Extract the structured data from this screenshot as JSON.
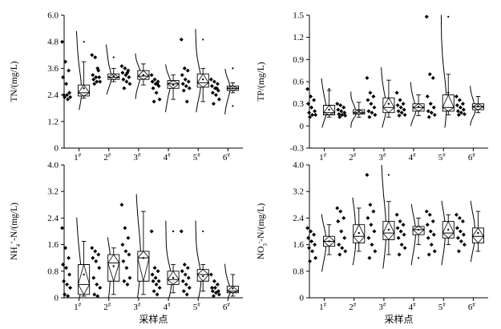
{
  "x_title": "采样点",
  "sites": [
    "1",
    "2",
    "3",
    "4",
    "5",
    "6"
  ],
  "site_mark": "#",
  "chart_data": [
    {
      "type": "violin-box-scatter",
      "ylabel": "TN/(mg/L)",
      "ylim": [
        0,
        6.0
      ],
      "yticks": [
        "0",
        "1.2",
        "2.4",
        "3.6",
        "4.8",
        "6.0"
      ],
      "series": [
        {
          "site": "1",
          "points": [
            4.8,
            3.9,
            3.5,
            3.2,
            2.9,
            2.5,
            2.4,
            2.4,
            2.3,
            2.3,
            2.2
          ],
          "box": [
            2.25,
            2.35,
            2.5,
            2.85,
            3.9
          ],
          "mean": 2.7,
          "outliers": [
            4.8
          ]
        },
        {
          "site": "2",
          "points": [
            4.2,
            4.1,
            3.5,
            3.3,
            3.2,
            3.2,
            3.1,
            3.0,
            3.0,
            2.9,
            3.6
          ],
          "box": [
            3.0,
            3.1,
            3.2,
            3.35,
            3.6
          ],
          "mean": 3.25,
          "outliers": [
            4.1
          ]
        },
        {
          "site": "3",
          "points": [
            3.7,
            3.6,
            3.5,
            3.4,
            3.3,
            3.2,
            3.1,
            3.0,
            2.9,
            2.7,
            3.4
          ],
          "box": [
            2.85,
            3.1,
            3.25,
            3.5,
            3.8
          ],
          "mean": 3.3,
          "outliers": []
        },
        {
          "site": "4",
          "points": [
            3.3,
            3.1,
            3.0,
            3.0,
            2.9,
            2.8,
            2.7,
            2.5,
            2.2,
            2.1,
            2.9
          ],
          "box": [
            2.2,
            2.7,
            2.9,
            3.05,
            3.3
          ],
          "mean": 2.85,
          "outliers": []
        },
        {
          "site": "5",
          "points": [
            4.9,
            3.6,
            3.5,
            3.3,
            3.1,
            3.0,
            2.9,
            2.8,
            2.7,
            2.6,
            2.1
          ],
          "box": [
            2.1,
            2.75,
            2.95,
            3.35,
            3.6
          ],
          "mean": 3.1,
          "outliers": [
            4.9
          ]
        },
        {
          "site": "6",
          "points": [
            3.1,
            3.0,
            2.9,
            2.8,
            2.7,
            2.6,
            2.5,
            2.4,
            2.2,
            2.0,
            2.7
          ],
          "box": [
            2.5,
            2.6,
            2.7,
            2.8,
            2.95
          ],
          "mean": 2.7,
          "outliers": [
            3.6,
            1.9
          ]
        }
      ]
    },
    {
      "type": "violin-box-scatter",
      "ylabel": "TP/(mg/L)",
      "ylim": [
        -0.3,
        1.5
      ],
      "yticks": [
        "-0.3",
        "0",
        "0.3",
        "0.6",
        "0.9",
        "1.2",
        "1.5"
      ],
      "series": [
        {
          "site": "1",
          "points": [
            0.5,
            0.4,
            0.35,
            0.3,
            0.25,
            0.2,
            0.18,
            0.15,
            0.15,
            0.12
          ],
          "box": [
            0.12,
            0.15,
            0.18,
            0.28,
            0.48
          ],
          "mean": 0.22,
          "outliers": [
            0.5
          ]
        },
        {
          "site": "2",
          "points": [
            0.3,
            0.28,
            0.25,
            0.22,
            0.2,
            0.18,
            0.16,
            0.15,
            0.14,
            0.12
          ],
          "box": [
            0.12,
            0.16,
            0.18,
            0.22,
            0.32
          ],
          "mean": 0.2,
          "outliers": []
        },
        {
          "site": "3",
          "points": [
            0.65,
            0.45,
            0.4,
            0.35,
            0.3,
            0.25,
            0.2,
            0.18,
            0.15,
            0.12
          ],
          "box": [
            0.12,
            0.18,
            0.25,
            0.38,
            0.62
          ],
          "mean": 0.3,
          "outliers": []
        },
        {
          "site": "4",
          "points": [
            0.45,
            0.35,
            0.3,
            0.28,
            0.25,
            0.22,
            0.2,
            0.18,
            0.15,
            0.14
          ],
          "box": [
            0.14,
            0.2,
            0.25,
            0.3,
            0.42
          ],
          "mean": 0.26,
          "outliers": []
        },
        {
          "site": "5",
          "points": [
            1.48,
            0.7,
            0.65,
            0.4,
            0.3,
            0.25,
            0.2,
            0.18,
            0.15,
            0.12
          ],
          "box": [
            0.15,
            0.2,
            0.25,
            0.42,
            0.7
          ],
          "mean": 0.45,
          "outliers": [
            1.48
          ]
        },
        {
          "site": "6",
          "points": [
            0.4,
            0.35,
            0.3,
            0.28,
            0.25,
            0.22,
            0.2,
            0.18,
            0.16,
            0.15
          ],
          "box": [
            0.18,
            0.22,
            0.26,
            0.3,
            0.4
          ],
          "mean": 0.27,
          "outliers": []
        }
      ]
    },
    {
      "type": "violin-box-scatter",
      "ylabel": "NH4+-N/(mg/L)",
      "ylim": [
        0,
        4.0
      ],
      "yticks": [
        "0",
        "0.8",
        "1.6",
        "2.4",
        "3.2",
        "4.0"
      ],
      "series": [
        {
          "site": "1",
          "points": [
            2.1,
            1.5,
            1.2,
            1.0,
            0.9,
            0.7,
            0.5,
            0.4,
            0.3,
            0.1,
            0.05
          ],
          "box": [
            0.05,
            0.1,
            0.4,
            1.0,
            1.7
          ],
          "mean": 0.7,
          "outliers": []
        },
        {
          "site": "2",
          "points": [
            1.5,
            1.4,
            1.3,
            1.2,
            1.1,
            0.9,
            0.6,
            0.4,
            0.3,
            0.1,
            0.05
          ],
          "box": [
            0.1,
            0.5,
            1.05,
            1.3,
            1.5
          ],
          "mean": 0.95,
          "outliers": []
        },
        {
          "site": "3",
          "points": [
            2.8,
            2.1,
            1.8,
            1.6,
            1.4,
            1.3,
            1.1,
            0.9,
            0.6,
            0.5,
            0.4
          ],
          "box": [
            0.1,
            0.5,
            1.2,
            1.4,
            2.6
          ],
          "mean": 1.2,
          "outliers": []
        },
        {
          "site": "4",
          "points": [
            2.0,
            0.9,
            0.8,
            0.7,
            0.6,
            0.5,
            0.5,
            0.4,
            0.3,
            0.2,
            0.1
          ],
          "box": [
            0.15,
            0.4,
            0.55,
            0.8,
            1.0
          ],
          "mean": 0.6,
          "outliers": [
            2.0
          ]
        },
        {
          "site": "5",
          "points": [
            2.0,
            1.0,
            0.9,
            0.8,
            0.7,
            0.6,
            0.5,
            0.4,
            0.3,
            0.2,
            0.1
          ],
          "box": [
            0.2,
            0.5,
            0.7,
            0.85,
            1.0
          ],
          "mean": 0.65,
          "outliers": [
            2.0
          ]
        },
        {
          "site": "6",
          "points": [
            0.7,
            0.5,
            0.4,
            0.3,
            0.3,
            0.2,
            0.2,
            0.15,
            0.1,
            0.05
          ],
          "box": [
            0.05,
            0.15,
            0.2,
            0.35,
            0.7
          ],
          "mean": 0.28,
          "outliers": []
        }
      ]
    },
    {
      "type": "violin-box-scatter",
      "ylabel": "NO3--N/(mg/L)",
      "ylim": [
        0,
        4.0
      ],
      "yticks": [
        "0",
        "0.8",
        "1.6",
        "2.4",
        "3.2",
        "4.0"
      ],
      "series": [
        {
          "site": "1",
          "points": [
            2.1,
            2.0,
            1.9,
            1.8,
            1.7,
            1.6,
            1.5,
            1.4,
            1.2,
            1.1
          ],
          "box": [
            1.3,
            1.55,
            1.7,
            1.85,
            2.2
          ],
          "mean": 1.7,
          "outliers": []
        },
        {
          "site": "2",
          "points": [
            2.7,
            2.6,
            2.4,
            2.3,
            2.0,
            1.8,
            1.6,
            1.5,
            1.4,
            1.3
          ],
          "box": [
            1.4,
            1.65,
            1.85,
            2.2,
            2.7
          ],
          "mean": 1.95,
          "outliers": []
        },
        {
          "site": "3",
          "points": [
            3.7,
            2.8,
            2.6,
            2.4,
            2.2,
            2.0,
            1.8,
            1.6,
            1.4,
            1.2
          ],
          "box": [
            1.3,
            1.75,
            1.95,
            2.3,
            2.9
          ],
          "mean": 2.05,
          "outliers": [
            3.7
          ]
        },
        {
          "site": "4",
          "points": [
            2.5,
            2.3,
            2.2,
            2.1,
            2.0,
            1.9,
            1.8,
            1.6,
            1.5,
            1.3
          ],
          "box": [
            1.6,
            1.9,
            2.05,
            2.15,
            2.4
          ],
          "mean": 2.05,
          "outliers": [
            1.2
          ]
        },
        {
          "site": "5",
          "points": [
            2.6,
            2.5,
            2.3,
            2.2,
            2.0,
            1.9,
            1.8,
            1.6,
            1.4,
            1.3
          ],
          "box": [
            1.6,
            1.8,
            1.95,
            2.3,
            2.5
          ],
          "mean": 2.05,
          "outliers": []
        },
        {
          "site": "6",
          "points": [
            2.5,
            2.4,
            2.3,
            2.1,
            2.0,
            1.9,
            1.8,
            1.7,
            1.6,
            1.4
          ],
          "box": [
            1.4,
            1.65,
            1.85,
            2.1,
            2.6
          ],
          "mean": 1.95,
          "outliers": []
        }
      ]
    }
  ]
}
